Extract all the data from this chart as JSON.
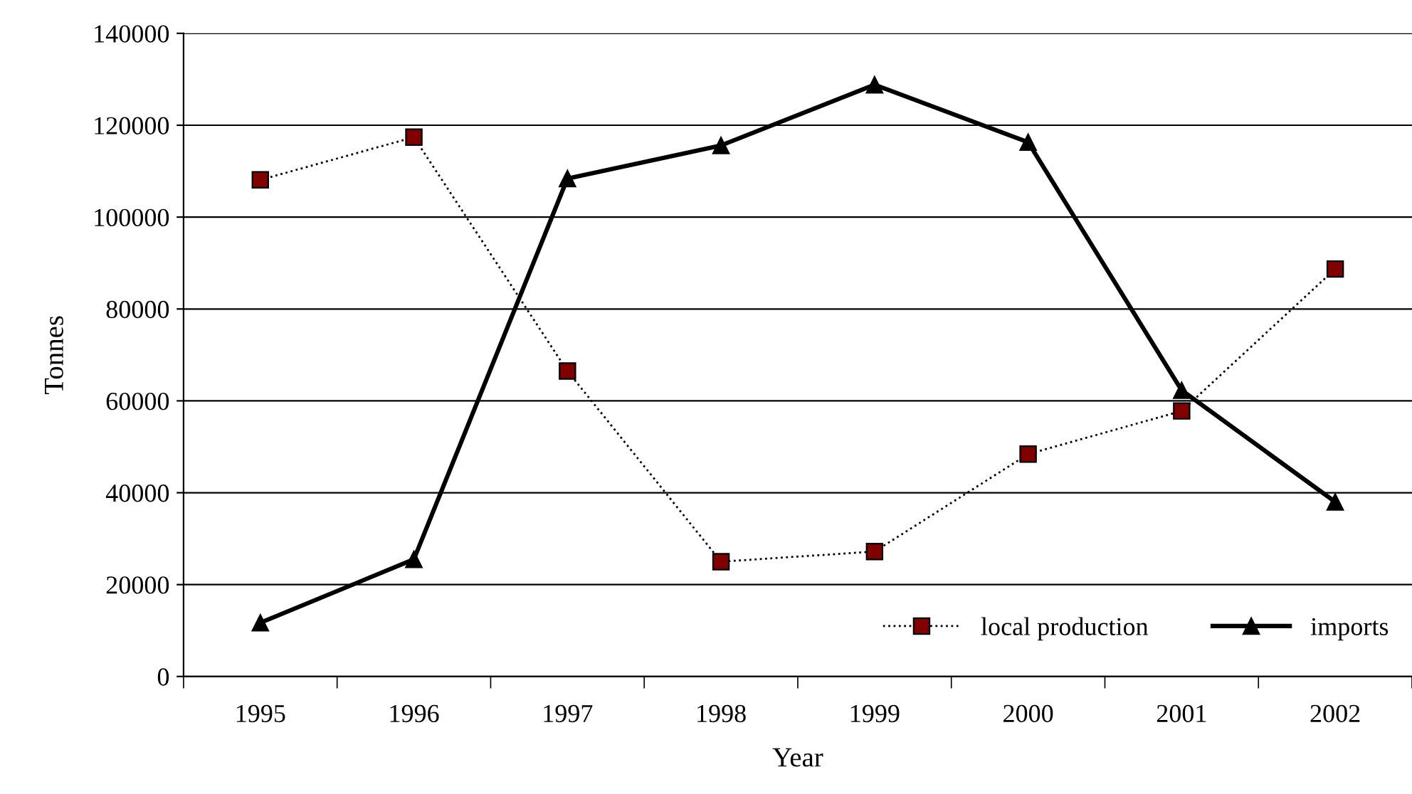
{
  "chart_data": {
    "type": "line",
    "xlabel": "Year",
    "ylabel": "Tonnes",
    "categories": [
      "1995",
      "1996",
      "1997",
      "1998",
      "1999",
      "2000",
      "2001",
      "2002"
    ],
    "series": [
      {
        "name": "local production",
        "color": "#800000",
        "marker": "square",
        "line_style": "dotted",
        "values": [
          108100,
          117400,
          66500,
          25000,
          27200,
          48400,
          57800,
          88700
        ]
      },
      {
        "name": "imports",
        "color": "#000000",
        "marker": "triangle",
        "line_style": "solid",
        "values": [
          11700,
          25500,
          108400,
          115600,
          128800,
          116300,
          62300,
          38000
        ]
      }
    ],
    "ylim": [
      0,
      140000
    ],
    "yticks": [
      0,
      20000,
      40000,
      60000,
      80000,
      100000,
      120000,
      140000
    ],
    "grid": "y",
    "legend": "bottom right"
  }
}
